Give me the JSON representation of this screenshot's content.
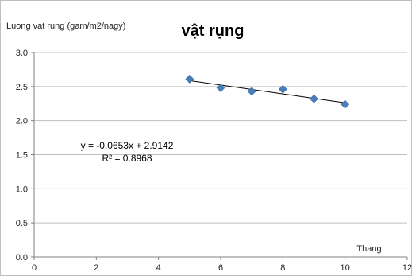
{
  "chart_data": {
    "type": "scatter",
    "title": "vật rụng",
    "ylabel": "Luong vat rung (gam/m2/nagy)",
    "xlabel": "Thang",
    "xlim": [
      0,
      12
    ],
    "ylim": [
      0.0,
      3.0
    ],
    "xticks": [
      "0",
      "2",
      "4",
      "6",
      "8",
      "10",
      "12"
    ],
    "yticks": [
      "0.0",
      "0.5",
      "1.0",
      "1.5",
      "2.0",
      "2.5",
      "3.0"
    ],
    "grid": "horizontal",
    "legend": "none",
    "series": [
      {
        "x": [
          5,
          6,
          7,
          8,
          9,
          10
        ],
        "y": [
          2.61,
          2.48,
          2.43,
          2.46,
          2.32,
          2.24
        ],
        "marker": "diamond",
        "color": "#4a7ebb"
      }
    ],
    "trendline": {
      "type": "linear",
      "slope": -0.0653,
      "intercept": 2.9142,
      "x_range": [
        5,
        10
      ],
      "color": "#000000"
    },
    "annotations": {
      "equation": "y = -0.0653x + 2.9142",
      "r_squared": "R² = 0.8968"
    }
  }
}
